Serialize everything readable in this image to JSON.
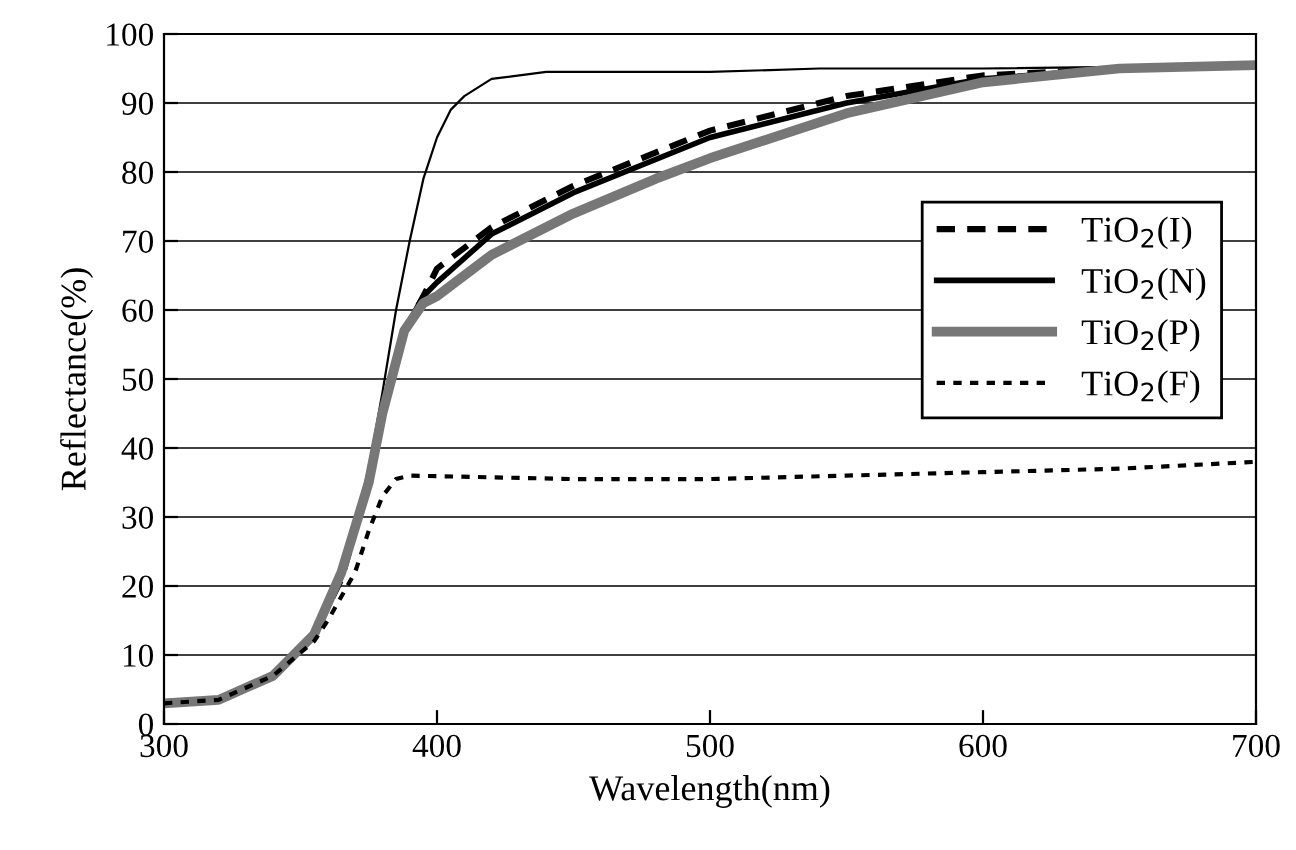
{
  "chart_data": {
    "type": "line",
    "xlabel": "Wavelength(nm)",
    "ylabel": "Reflectance(%)",
    "xlim": [
      300,
      700
    ],
    "ylim": [
      0,
      100
    ],
    "xticks": [
      300,
      400,
      500,
      600,
      700
    ],
    "yticks": [
      0,
      10,
      20,
      30,
      40,
      50,
      60,
      70,
      80,
      90,
      100
    ],
    "grid": "y",
    "legend": "right",
    "marker": "none",
    "series": [
      {
        "color": "#000000",
        "line_style": "solid",
        "x": [
          300,
          320,
          340,
          355,
          365,
          375,
          380,
          385,
          390,
          395,
          400,
          405,
          410,
          420,
          440,
          500,
          540,
          600,
          700
        ],
        "values": [
          3,
          3.5,
          7,
          13,
          22,
          37,
          48,
          60,
          70,
          79,
          85,
          89,
          91,
          93.5,
          94.5,
          94.5,
          95,
          95,
          95.5
        ]
      },
      {
        "name": "TiO$_{2}$(I)",
        "color": "#000000",
        "line_style": "dashed",
        "x": [
          300,
          320,
          340,
          355,
          365,
          375,
          380,
          388,
          395,
          400,
          420,
          450,
          500,
          550,
          600,
          650,
          700
        ],
        "values": [
          3,
          3.5,
          7,
          13,
          21,
          35,
          45,
          57,
          62,
          66,
          72,
          78,
          86,
          91,
          94,
          95,
          95.5
        ]
      },
      {
        "name": "TiO$_{2}$(N)",
        "color": "#000000",
        "line_style": "solid",
        "x": [
          300,
          320,
          340,
          355,
          365,
          375,
          380,
          388,
          395,
          400,
          420,
          450,
          500,
          550,
          600,
          650,
          700
        ],
        "values": [
          3,
          3.5,
          7,
          13,
          22,
          35,
          45,
          57,
          62,
          64,
          71,
          77,
          85,
          90,
          93.5,
          95,
          95.5
        ]
      },
      {
        "name": "TiO$_{2}$(P)",
        "color": "#777777",
        "line_style": "solid",
        "x": [
          300,
          320,
          340,
          355,
          365,
          375,
          380,
          388,
          395,
          400,
          420,
          450,
          480,
          500,
          550,
          600,
          650,
          700
        ],
        "values": [
          3,
          3.5,
          7,
          13,
          22,
          35,
          45,
          57,
          61,
          62,
          68,
          74,
          79,
          82,
          88.5,
          93,
          95,
          95.5
        ]
      },
      {
        "name": "TiO$_{2}$(F)",
        "color": "#000000",
        "line_style": "dotted",
        "x": [
          300,
          320,
          340,
          355,
          360,
          370,
          375,
          380,
          385,
          390,
          450,
          500,
          550,
          600,
          650,
          700
        ],
        "values": [
          3,
          3.5,
          7,
          12,
          15,
          22,
          28,
          33,
          35.5,
          36,
          35.5,
          35.5,
          36,
          36.5,
          37,
          38
        ]
      }
    ]
  }
}
